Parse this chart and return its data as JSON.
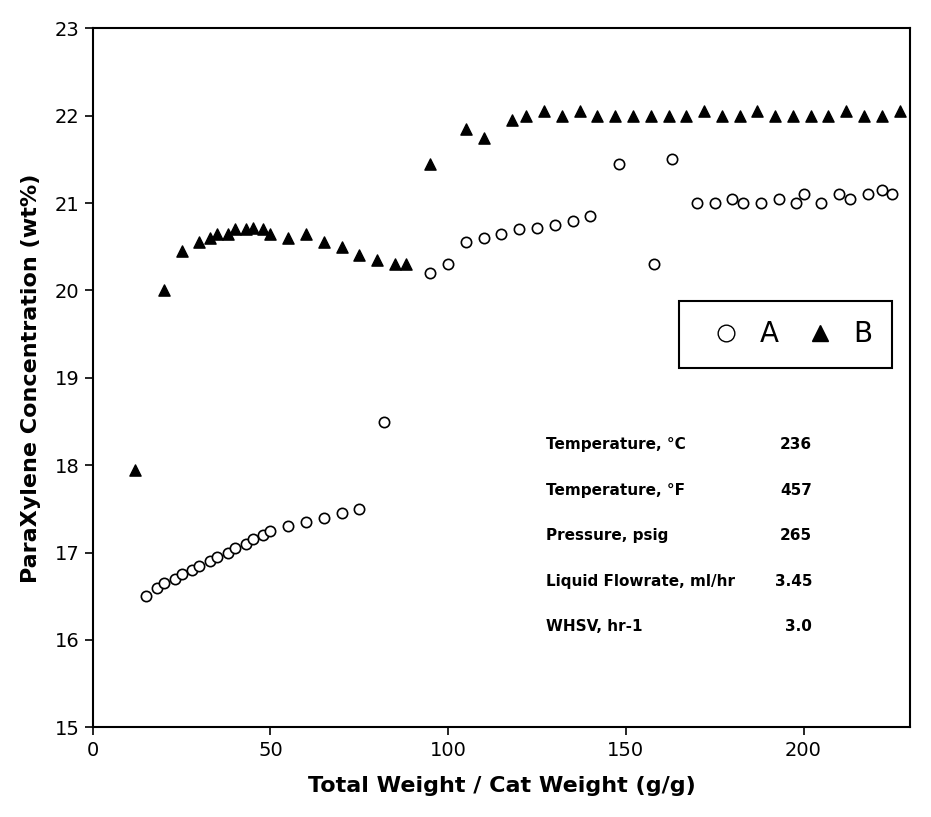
{
  "series_A_x": [
    15,
    18,
    20,
    23,
    25,
    28,
    30,
    33,
    35,
    38,
    40,
    43,
    45,
    48,
    50,
    55,
    60,
    65,
    70,
    75,
    82,
    95,
    100,
    105,
    110,
    115,
    120,
    125,
    130,
    135,
    140,
    148,
    158,
    163,
    170,
    175,
    180,
    183,
    188,
    193,
    198,
    200,
    205,
    210,
    213,
    218,
    222,
    225
  ],
  "series_A_y": [
    16.5,
    16.6,
    16.65,
    16.7,
    16.75,
    16.8,
    16.85,
    16.9,
    16.95,
    17.0,
    17.05,
    17.1,
    17.15,
    17.2,
    17.25,
    17.3,
    17.35,
    17.4,
    17.45,
    17.5,
    18.5,
    20.2,
    20.3,
    20.55,
    20.6,
    20.65,
    20.7,
    20.72,
    20.75,
    20.8,
    20.85,
    21.45,
    20.3,
    21.5,
    21.0,
    21.0,
    21.05,
    21.0,
    21.0,
    21.05,
    21.0,
    21.1,
    21.0,
    21.1,
    21.05,
    21.1,
    21.15,
    21.1
  ],
  "series_B_x": [
    12,
    20,
    25,
    30,
    33,
    35,
    38,
    40,
    43,
    45,
    48,
    50,
    55,
    60,
    65,
    70,
    75,
    80,
    85,
    88,
    95,
    105,
    110,
    118,
    122,
    127,
    132,
    137,
    142,
    147,
    152,
    157,
    162,
    167,
    172,
    177,
    182,
    187,
    192,
    197,
    202,
    207,
    212,
    217,
    222,
    227
  ],
  "series_B_y": [
    17.95,
    20.0,
    20.45,
    20.55,
    20.6,
    20.65,
    20.65,
    20.7,
    20.7,
    20.72,
    20.7,
    20.65,
    20.6,
    20.65,
    20.55,
    20.5,
    20.4,
    20.35,
    20.3,
    20.3,
    21.45,
    21.85,
    21.75,
    21.95,
    22.0,
    22.05,
    22.0,
    22.05,
    22.0,
    22.0,
    22.0,
    22.0,
    22.0,
    22.0,
    22.05,
    22.0,
    22.0,
    22.05,
    22.0,
    22.0,
    22.0,
    22.0,
    22.05,
    22.0,
    22.0,
    22.05
  ],
  "xlabel": "Total Weight / Cat Weight (g/g)",
  "ylabel": "ParaXylene Concentration (wt%)",
  "xlim": [
    0,
    230
  ],
  "ylim": [
    15,
    23
  ],
  "xticks": [
    0,
    50,
    100,
    150,
    200
  ],
  "yticks": [
    15,
    16,
    17,
    18,
    19,
    20,
    21,
    22,
    23
  ],
  "annotation_lines": [
    [
      "Temperature, °C",
      "236"
    ],
    [
      "Temperature, °F",
      "457"
    ],
    [
      "Pressure, psig",
      "265"
    ],
    [
      "Liquid Flowrate, ml/hr",
      "3.45"
    ],
    [
      "WHSV, hr-1",
      "3.0"
    ]
  ],
  "background_color": "#ffffff"
}
